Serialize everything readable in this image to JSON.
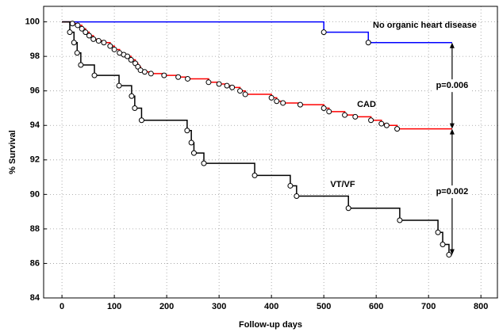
{
  "chart_data": {
    "type": "step",
    "x_label": "Follow-up days",
    "y_label": "% Survival",
    "xlim": [
      -35,
      833
    ],
    "ylim": [
      84,
      100.9
    ],
    "xticks": [
      0,
      100,
      200,
      300,
      400,
      500,
      600,
      700,
      800
    ],
    "yticks": [
      84,
      86,
      88,
      90,
      92,
      94,
      96,
      98,
      100
    ],
    "grid": true,
    "series": [
      {
        "name": "No organic heart disease",
        "color": "#0000ff",
        "x": [
          0,
          500,
          585,
          745
        ],
        "values": [
          100,
          99.4,
          98.8,
          98.8
        ]
      },
      {
        "name": "CAD",
        "color": "#ff0000",
        "x": [
          0,
          20,
          30,
          38,
          45,
          52,
          60,
          70,
          80,
          92,
          100,
          110,
          118,
          125,
          132,
          140,
          145,
          150,
          158,
          170,
          195,
          222,
          240,
          280,
          300,
          315,
          325,
          340,
          350,
          400,
          410,
          422,
          455,
          500,
          510,
          540,
          560,
          590,
          610,
          620,
          640,
          745
        ],
        "values": [
          100,
          99.9,
          99.8,
          99.6,
          99.4,
          99.2,
          99.0,
          98.9,
          98.8,
          98.6,
          98.4,
          98.2,
          98.1,
          98.0,
          97.8,
          97.6,
          97.4,
          97.2,
          97.1,
          97.0,
          96.9,
          96.8,
          96.7,
          96.5,
          96.4,
          96.3,
          96.2,
          96.0,
          95.8,
          95.6,
          95.4,
          95.3,
          95.2,
          95.0,
          94.8,
          94.6,
          94.5,
          94.3,
          94.1,
          94.0,
          93.8,
          93.8
        ]
      },
      {
        "name": "VT/VF",
        "color": "#000000",
        "x": [
          0,
          15,
          23,
          29,
          36,
          62,
          109,
          133,
          139,
          152,
          239,
          247,
          252,
          271,
          368,
          436,
          448,
          547,
          645,
          718,
          727,
          739,
          745
        ],
        "values": [
          100,
          99.4,
          98.8,
          98.2,
          97.5,
          96.9,
          96.3,
          95.7,
          95.0,
          94.3,
          93.7,
          93.0,
          92.4,
          91.8,
          91.1,
          90.5,
          89.9,
          89.2,
          88.5,
          87.8,
          87.1,
          86.5,
          86.5
        ]
      }
    ],
    "annotations": [
      "p=0.006",
      "p=0.002"
    ]
  }
}
